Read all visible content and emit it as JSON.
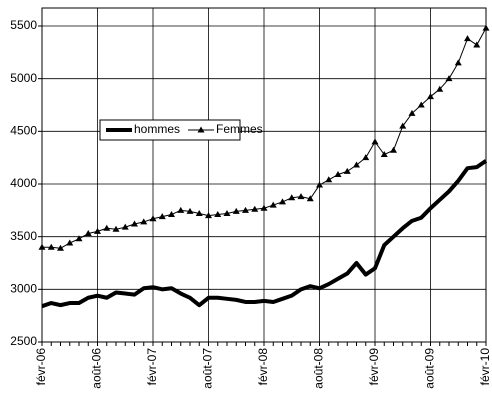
{
  "chart_data": {
    "type": "line",
    "categories": [
      "févr-06",
      null,
      null,
      null,
      null,
      null,
      "août-06",
      null,
      null,
      null,
      null,
      null,
      "févr-07",
      null,
      null,
      null,
      null,
      null,
      "août-07",
      null,
      null,
      null,
      null,
      null,
      "févr-08",
      null,
      null,
      null,
      null,
      null,
      "août-08",
      null,
      null,
      null,
      null,
      null,
      "févr-09",
      null,
      null,
      null,
      null,
      null,
      "août-09",
      null,
      null,
      null,
      null,
      null,
      "févr-10"
    ],
    "series": [
      {
        "name": "hommes",
        "color": "#000000",
        "marker": "none",
        "width": 4,
        "values": [
          2840,
          2870,
          2850,
          2870,
          2870,
          2920,
          2940,
          2920,
          2970,
          2960,
          2950,
          3010,
          3020,
          3000,
          3010,
          2960,
          2920,
          2850,
          2920,
          2920,
          2910,
          2900,
          2880,
          2880,
          2890,
          2880,
          2910,
          2940,
          3000,
          3030,
          3010,
          3050,
          3100,
          3150,
          3250,
          3140,
          3200,
          3420,
          3500,
          3580,
          3650,
          3680,
          3770,
          3850,
          3930,
          4030,
          4150,
          4160,
          4220
        ]
      },
      {
        "name": "Femmes",
        "color": "#000000",
        "marker": "triangle",
        "width": 1,
        "values": [
          3400,
          3400,
          3390,
          3440,
          3480,
          3530,
          3550,
          3580,
          3570,
          3590,
          3620,
          3640,
          3670,
          3690,
          3710,
          3750,
          3740,
          3720,
          3700,
          3710,
          3720,
          3740,
          3750,
          3760,
          3770,
          3800,
          3830,
          3870,
          3880,
          3860,
          3990,
          4040,
          4090,
          4120,
          4180,
          4250,
          4400,
          4280,
          4320,
          4550,
          4670,
          4750,
          4830,
          4900,
          5000,
          5150,
          5380,
          5320,
          5480
        ]
      }
    ],
    "ylim": [
      2500,
      5500
    ],
    "yticks": [
      2500,
      3000,
      3500,
      4000,
      4500,
      5000,
      5500
    ],
    "grid": true,
    "legend": "center-left"
  }
}
